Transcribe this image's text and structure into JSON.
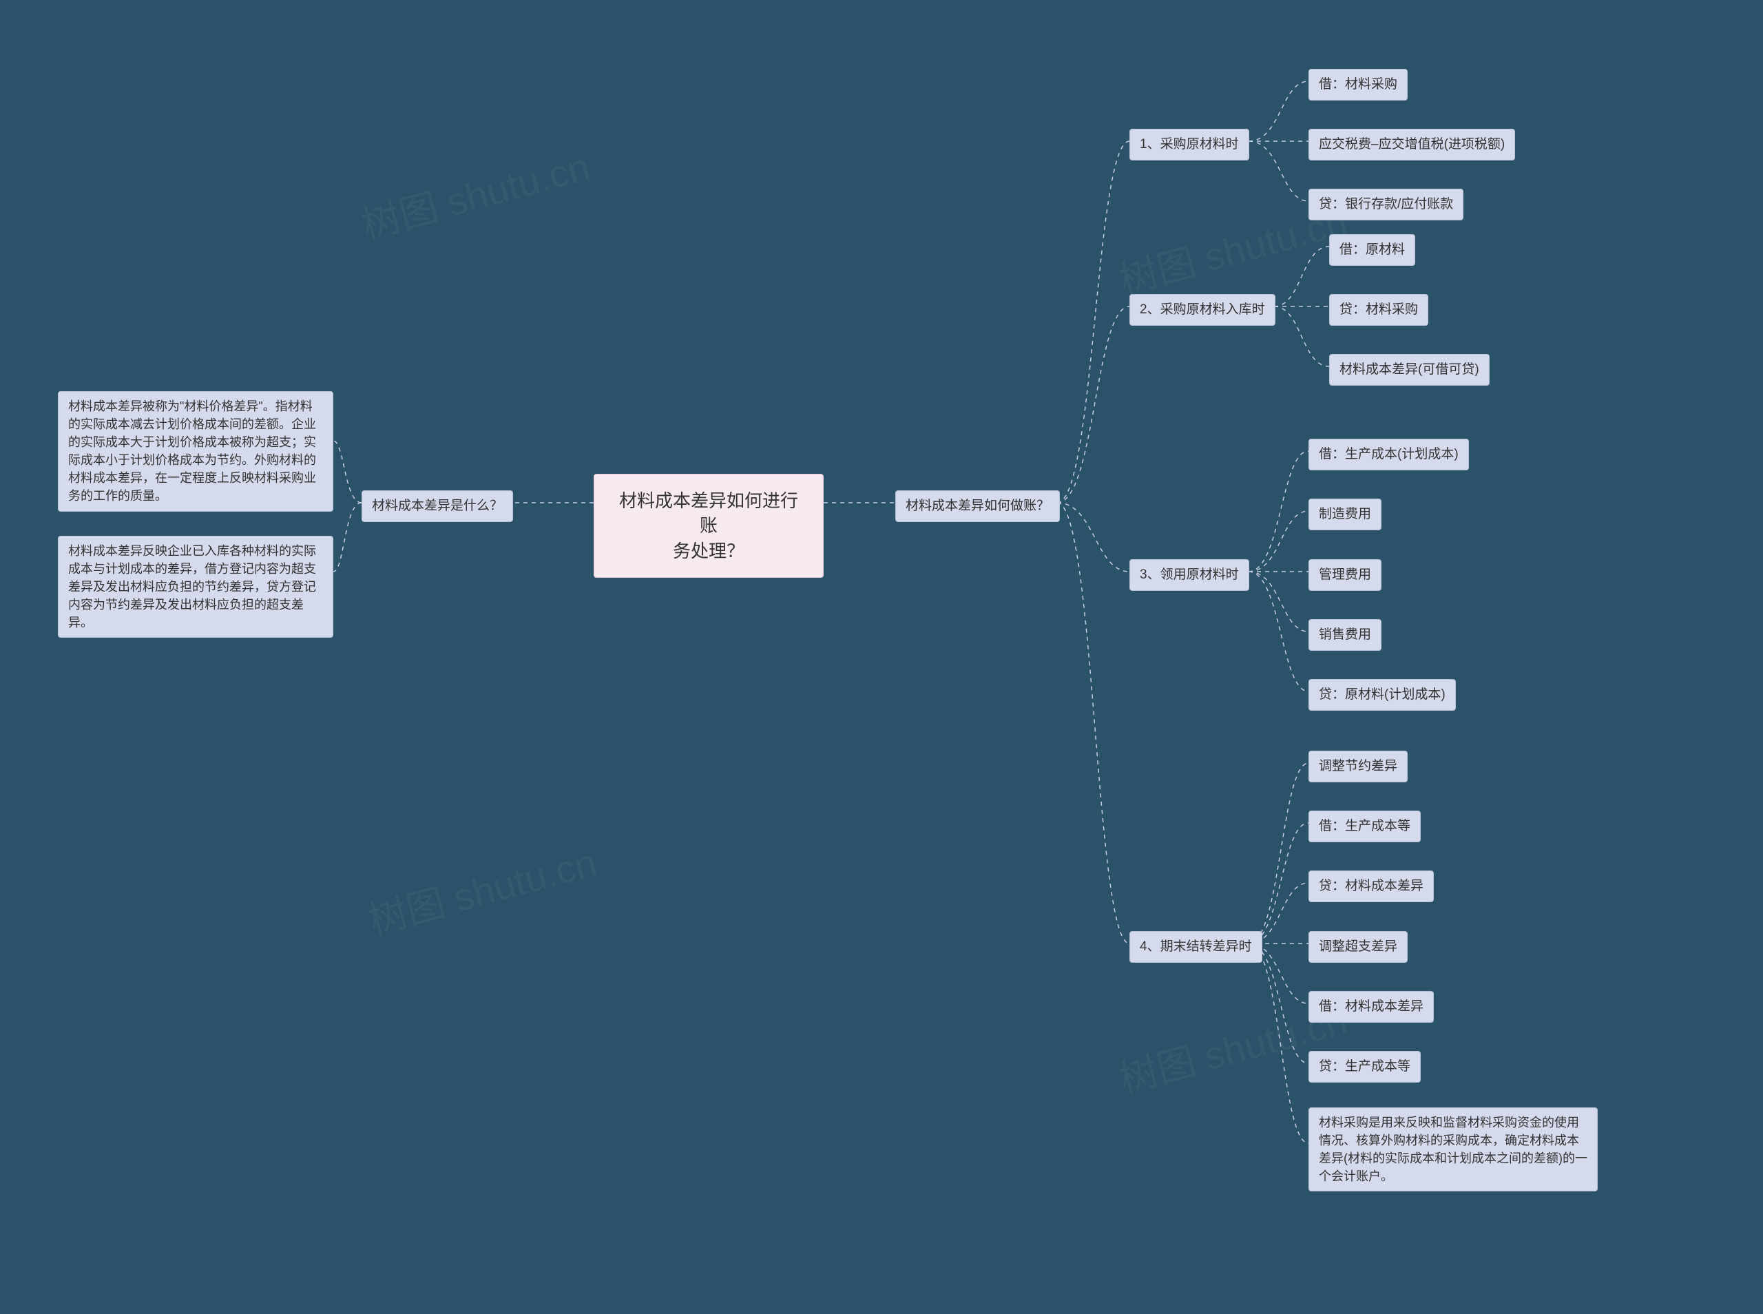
{
  "background_color": "#2a5268",
  "node_color": "#d5dbed",
  "node_border": "#b8c0d8",
  "root_color": "#f7eaf1",
  "root_border": "#e8c8d8",
  "connector_color": "#c5cde0",
  "watermark_text": "树图 shutu.cn",
  "root": {
    "label": "材料成本差异如何进行账\n务处理？"
  },
  "left": {
    "q": {
      "label": "材料成本差异是什么？"
    },
    "p1": {
      "text": "材料成本差异被称为\"材料价格差异\"。指材料的实际成本减去计划价格成本间的差额。企业的实际成本大于计划价格成本被称为超支；实际成本小于计划价格成本为节约。外购材料的材料成本差异，在一定程度上反映材料采购业务的工作的质量。"
    },
    "p2": {
      "text": "材料成本差异反映企业已入库各种材料的实际成本与计划成本的差异，借方登记内容为超支差异及发出材料应负担的节约差异，贷方登记内容为节约差异及发出材料应负担的超支差异。"
    }
  },
  "right": {
    "q": {
      "label": "材料成本差异如何做账？"
    },
    "s1": {
      "label": "1、采购原材料时",
      "i1": "借：材料采购",
      "i2": "应交税费–应交增值税(进项税额)",
      "i3": "贷：银行存款/应付账款"
    },
    "s2": {
      "label": "2、采购原材料入库时",
      "i1": "借：原材料",
      "i2": "贷：材料采购",
      "i3": "材料成本差异(可借可贷)"
    },
    "s3": {
      "label": "3、领用原材料时",
      "i1": "借：生产成本(计划成本)",
      "i2": "制造费用",
      "i3": "管理费用",
      "i4": "销售费用",
      "i5": "贷：原材料(计划成本)"
    },
    "s4": {
      "label": "4、期末结转差异时",
      "i1": "调整节约差异",
      "i2": "借：生产成本等",
      "i3": "贷：材料成本差异",
      "i4": "调整超支差异",
      "i5": "借：材料成本差异",
      "i6": "贷：生产成本等",
      "i7": "材料采购是用来反映和监督材料采购资金的使用情况、核算外购材料的采购成本，确定材料成本差异(材料的实际成本和计划成本之间的差额)的一个会计账户。"
    }
  }
}
